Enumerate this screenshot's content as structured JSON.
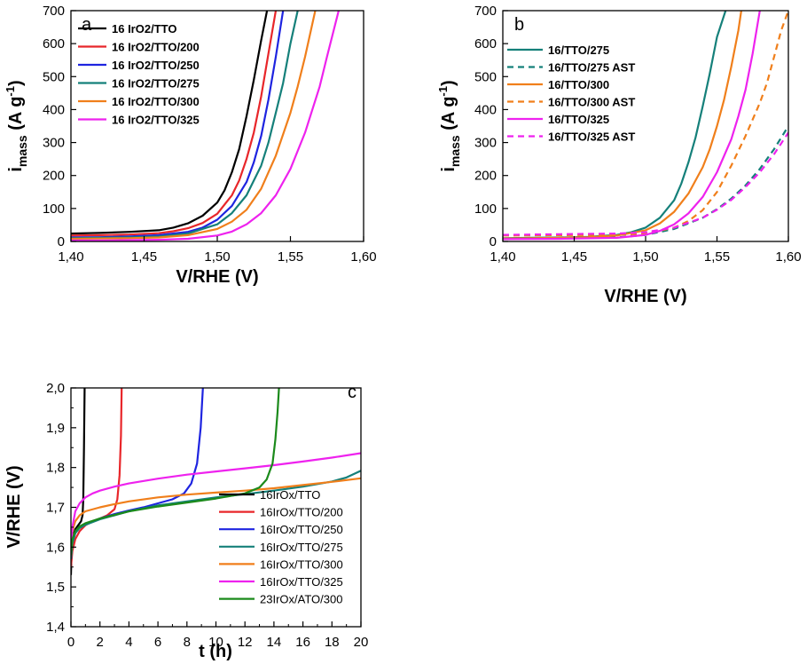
{
  "chart_data": [
    {
      "panel": "a",
      "type": "line",
      "xlabel": "V/RHE (V)",
      "ylabel_main": "i",
      "ylabel_sub": "mass",
      "ylabel_unit_pre": " (A g",
      "ylabel_unit_sup": "-1",
      "ylabel_unit_post": ")",
      "xlim": [
        1.4,
        1.6
      ],
      "ylim": [
        0,
        700
      ],
      "xticks": [
        "1,40",
        "1,45",
        "1,50",
        "1,55",
        "1,60"
      ],
      "yticks": [
        "0",
        "100",
        "200",
        "300",
        "400",
        "500",
        "600",
        "700"
      ],
      "legend_position": "top-left",
      "series": [
        {
          "name": "16 IrO2/TTO",
          "color": "#000000",
          "dash": false,
          "x": [
            1.4,
            1.42,
            1.44,
            1.46,
            1.47,
            1.48,
            1.49,
            1.5,
            1.505,
            1.51,
            1.515,
            1.52,
            1.525,
            1.53,
            1.534
          ],
          "y": [
            24,
            26,
            29,
            34,
            42,
            55,
            78,
            118,
            155,
            210,
            280,
            380,
            490,
            610,
            700
          ]
        },
        {
          "name": "16 IrO2/TTO/200",
          "color": "#e8262a",
          "dash": false,
          "x": [
            1.4,
            1.42,
            1.44,
            1.46,
            1.47,
            1.48,
            1.49,
            1.5,
            1.51,
            1.515,
            1.52,
            1.525,
            1.53,
            1.535,
            1.54
          ],
          "y": [
            18,
            19,
            21,
            25,
            31,
            40,
            56,
            84,
            140,
            185,
            250,
            330,
            440,
            570,
            700
          ]
        },
        {
          "name": "16 IrO2/TTO/250",
          "color": "#1e24e0",
          "dash": false,
          "x": [
            1.4,
            1.42,
            1.44,
            1.46,
            1.48,
            1.49,
            1.5,
            1.51,
            1.52,
            1.525,
            1.53,
            1.535,
            1.54,
            1.545
          ],
          "y": [
            12,
            13,
            15,
            19,
            29,
            42,
            66,
            108,
            180,
            240,
            320,
            430,
            560,
            700
          ]
        },
        {
          "name": "16 IrO2/TTO/275",
          "color": "#15807a",
          "dash": false,
          "x": [
            1.4,
            1.42,
            1.44,
            1.46,
            1.48,
            1.5,
            1.51,
            1.52,
            1.53,
            1.535,
            1.54,
            1.545,
            1.55,
            1.555
          ],
          "y": [
            10,
            11,
            12,
            15,
            24,
            52,
            86,
            140,
            230,
            300,
            390,
            480,
            600,
            700
          ]
        },
        {
          "name": "16 IrO2/TTO/300",
          "color": "#f07f1b",
          "dash": false,
          "x": [
            1.4,
            1.42,
            1.44,
            1.46,
            1.48,
            1.5,
            1.51,
            1.52,
            1.53,
            1.54,
            1.55,
            1.555,
            1.56,
            1.565,
            1.567
          ],
          "y": [
            8,
            9,
            10,
            12,
            19,
            38,
            60,
            96,
            160,
            260,
            390,
            470,
            560,
            660,
            700
          ]
        },
        {
          "name": "16 IrO2/TTO/325",
          "color": "#ee22ee",
          "dash": false,
          "x": [
            1.4,
            1.42,
            1.44,
            1.46,
            1.48,
            1.5,
            1.51,
            1.52,
            1.53,
            1.54,
            1.55,
            1.56,
            1.57,
            1.575,
            1.583
          ],
          "y": [
            3,
            3,
            4,
            5,
            8,
            18,
            30,
            52,
            86,
            140,
            220,
            330,
            470,
            560,
            700
          ]
        }
      ]
    },
    {
      "panel": "b",
      "type": "line",
      "xlabel": "V/RHE (V)",
      "ylabel_main": "i",
      "ylabel_sub": "mass",
      "ylabel_unit_pre": " (A g",
      "ylabel_unit_sup": "-1",
      "ylabel_unit_post": ")",
      "xlim": [
        1.4,
        1.6
      ],
      "ylim": [
        0,
        700
      ],
      "xticks": [
        "1,40",
        "1,45",
        "1,50",
        "1,55",
        "1,60"
      ],
      "yticks": [
        "0",
        "100",
        "200",
        "300",
        "400",
        "500",
        "600",
        "700"
      ],
      "legend_position": "top-left",
      "series": [
        {
          "name": "16/TTO/275",
          "color": "#15807a",
          "dash": false,
          "x": [
            1.4,
            1.42,
            1.44,
            1.46,
            1.48,
            1.49,
            1.5,
            1.51,
            1.52,
            1.525,
            1.53,
            1.535,
            1.54,
            1.545,
            1.55,
            1.556
          ],
          "y": [
            10,
            11,
            12,
            14,
            20,
            28,
            42,
            72,
            125,
            175,
            240,
            315,
            410,
            510,
            620,
            700
          ]
        },
        {
          "name": "16/TTO/275 AST",
          "color": "#15807a",
          "dash": true,
          "x": [
            1.4,
            1.44,
            1.48,
            1.5,
            1.52,
            1.54,
            1.55,
            1.56,
            1.57,
            1.58,
            1.59,
            1.6
          ],
          "y": [
            8,
            9,
            12,
            20,
            38,
            72,
            98,
            130,
            170,
            220,
            280,
            350
          ]
        },
        {
          "name": "16/TTO/300",
          "color": "#f07f1b",
          "dash": false,
          "x": [
            1.4,
            1.42,
            1.44,
            1.46,
            1.48,
            1.5,
            1.51,
            1.52,
            1.53,
            1.54,
            1.545,
            1.55,
            1.555,
            1.56,
            1.565,
            1.567
          ],
          "y": [
            9,
            10,
            11,
            13,
            18,
            34,
            55,
            90,
            145,
            225,
            280,
            350,
            430,
            530,
            640,
            700
          ]
        },
        {
          "name": "16/TTO/300 AST",
          "color": "#f07f1b",
          "dash": true,
          "x": [
            1.4,
            1.44,
            1.48,
            1.5,
            1.52,
            1.53,
            1.54,
            1.55,
            1.56,
            1.57,
            1.58,
            1.585,
            1.59,
            1.595,
            1.6
          ],
          "y": [
            18,
            19,
            20,
            24,
            42,
            62,
            95,
            150,
            230,
            320,
            420,
            480,
            560,
            640,
            700
          ]
        },
        {
          "name": "16/TTO/325",
          "color": "#ee22ee",
          "dash": false,
          "x": [
            1.4,
            1.44,
            1.48,
            1.5,
            1.51,
            1.52,
            1.53,
            1.54,
            1.55,
            1.56,
            1.565,
            1.57,
            1.575,
            1.58
          ],
          "y": [
            7,
            8,
            11,
            20,
            32,
            52,
            85,
            135,
            210,
            310,
            380,
            460,
            570,
            700
          ]
        },
        {
          "name": "16/TTO/325 AST",
          "color": "#ee22ee",
          "dash": true,
          "x": [
            1.4,
            1.44,
            1.48,
            1.5,
            1.52,
            1.54,
            1.55,
            1.56,
            1.57,
            1.58,
            1.59,
            1.6
          ],
          "y": [
            20,
            22,
            24,
            28,
            42,
            72,
            96,
            126,
            165,
            210,
            265,
            330
          ]
        }
      ]
    },
    {
      "panel": "c",
      "type": "line",
      "xlabel": "t (h)",
      "ylabel": "V/RHE (V)",
      "xlim": [
        0,
        20
      ],
      "ylim": [
        1.4,
        2.0
      ],
      "xticks": [
        "0",
        "2",
        "4",
        "6",
        "8",
        "10",
        "12",
        "14",
        "16",
        "18",
        "20"
      ],
      "yticks": [
        "1,4",
        "1,5",
        "1,6",
        "1,7",
        "1,8",
        "1,9",
        "2,0"
      ],
      "legend_position": "bottom-right",
      "series": [
        {
          "name": "16IrOx/TTO",
          "color": "#000000",
          "dash": false,
          "x": [
            0.0,
            0.05,
            0.15,
            0.3,
            0.5,
            0.7,
            0.8,
            0.85,
            0.9,
            0.95
          ],
          "y": [
            1.53,
            1.6,
            1.63,
            1.645,
            1.655,
            1.665,
            1.68,
            1.72,
            1.85,
            2.015
          ]
        },
        {
          "name": "16IrOx/TTO/200",
          "color": "#e8262a",
          "dash": false,
          "x": [
            0.0,
            0.1,
            0.3,
            0.6,
            1.0,
            1.5,
            2.0,
            2.5,
            3.0,
            3.2,
            3.35,
            3.45,
            3.5
          ],
          "y": [
            1.55,
            1.59,
            1.62,
            1.64,
            1.655,
            1.665,
            1.672,
            1.68,
            1.695,
            1.72,
            1.78,
            1.88,
            2.0
          ]
        },
        {
          "name": "16IrOx/TTO/250",
          "color": "#1e24e0",
          "dash": false,
          "x": [
            0.0,
            0.1,
            0.3,
            0.6,
            1.0,
            2.0,
            3.0,
            4.0,
            5.0,
            6.0,
            7.0,
            7.8,
            8.3,
            8.7,
            8.95,
            9.1
          ],
          "y": [
            1.57,
            1.61,
            1.635,
            1.65,
            1.658,
            1.672,
            1.683,
            1.692,
            1.7,
            1.71,
            1.72,
            1.735,
            1.76,
            1.81,
            1.9,
            2.0
          ]
        },
        {
          "name": "16IrOx/TTO/275",
          "color": "#15807a",
          "dash": false,
          "x": [
            0.0,
            0.1,
            0.3,
            0.6,
            1.0,
            2.0,
            4.0,
            6.0,
            8.0,
            10.0,
            12.0,
            14.0,
            16.0,
            18.0,
            19.0,
            20.0
          ],
          "y": [
            1.57,
            1.61,
            1.635,
            1.648,
            1.656,
            1.67,
            1.69,
            1.705,
            1.715,
            1.725,
            1.733,
            1.742,
            1.752,
            1.765,
            1.775,
            1.792
          ]
        },
        {
          "name": "16IrOx/TTO/300",
          "color": "#f07f1b",
          "dash": false,
          "x": [
            0.0,
            0.1,
            0.3,
            0.6,
            1.0,
            2.0,
            3.0,
            4.0,
            6.0,
            8.0,
            10.0,
            12.0,
            14.0,
            16.0,
            18.0,
            20.0
          ],
          "y": [
            1.6,
            1.64,
            1.665,
            1.68,
            1.69,
            1.7,
            1.708,
            1.715,
            1.725,
            1.732,
            1.737,
            1.742,
            1.748,
            1.756,
            1.764,
            1.773
          ]
        },
        {
          "name": "16IrOx/TTO/325",
          "color": "#ee22ee",
          "dash": false,
          "x": [
            0.0,
            0.1,
            0.3,
            0.6,
            1.0,
            1.5,
            2.0,
            3.0,
            4.0,
            6.0,
            8.0,
            10.0,
            12.0,
            14.0,
            16.0,
            18.0,
            20.0
          ],
          "y": [
            1.6,
            1.65,
            1.69,
            1.71,
            1.725,
            1.735,
            1.742,
            1.752,
            1.76,
            1.772,
            1.782,
            1.79,
            1.798,
            1.806,
            1.815,
            1.825,
            1.836
          ]
        },
        {
          "name": "23IrOx/ATO/300",
          "color": "#1b8a1b",
          "dash": false,
          "x": [
            0.0,
            0.1,
            0.3,
            0.6,
            1.0,
            2.0,
            4.0,
            6.0,
            8.0,
            10.0,
            12.0,
            13.0,
            13.5,
            13.9,
            14.1,
            14.25,
            14.35
          ],
          "y": [
            1.58,
            1.62,
            1.64,
            1.652,
            1.66,
            1.672,
            1.69,
            1.702,
            1.712,
            1.722,
            1.735,
            1.75,
            1.77,
            1.81,
            1.87,
            1.94,
            2.0
          ]
        }
      ]
    }
  ]
}
